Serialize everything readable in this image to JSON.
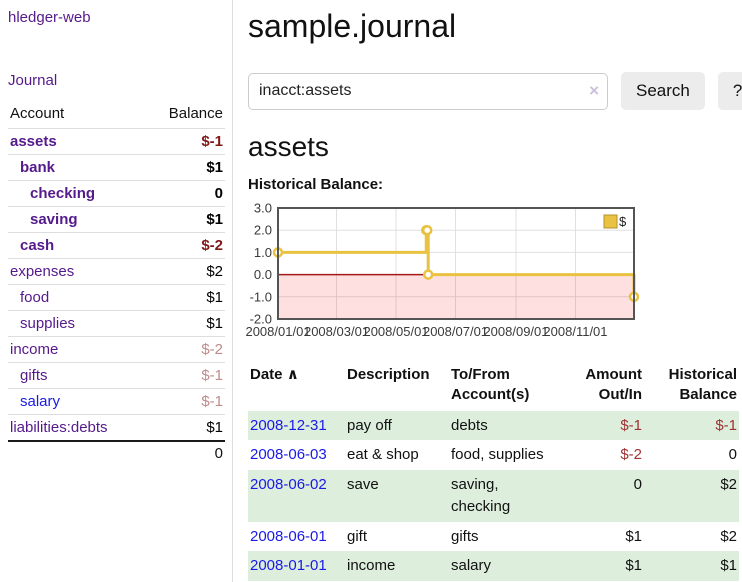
{
  "app": {
    "title": "hledger-web",
    "nav_journal": "Journal"
  },
  "colors": {
    "link_visited": "#551a8b",
    "link_unvisited": "#1a1ae6",
    "negative_strong": "#7f1a1a",
    "negative_pale": "#bf8b8b",
    "negative": "#9e3232",
    "row_shade": "#ddeedd",
    "series_gold": "#e8c240",
    "zero_line": "#a31a1a"
  },
  "sidebar": {
    "header": {
      "account": "Account",
      "balance": "Balance"
    },
    "accounts": [
      {
        "name": "assets",
        "depth": 1,
        "bold": true,
        "link": "visited",
        "balance": "$-1",
        "balance_class": "neg-strong"
      },
      {
        "name": "bank",
        "depth": 2,
        "bold": true,
        "link": "visited",
        "balance": "$1",
        "balance_class": "pos"
      },
      {
        "name": "checking",
        "depth": 3,
        "bold": true,
        "link": "visited",
        "balance": "0",
        "balance_class": "pos"
      },
      {
        "name": "saving",
        "depth": 3,
        "bold": true,
        "link": "visited",
        "balance": "$1",
        "balance_class": "pos"
      },
      {
        "name": "cash",
        "depth": 2,
        "bold": true,
        "link": "visited",
        "balance": "$-2",
        "balance_class": "neg-strong"
      },
      {
        "name": "expenses",
        "depth": 1,
        "bold": false,
        "link": "visited",
        "balance": "$2",
        "balance_class": "pos"
      },
      {
        "name": "food",
        "depth": 2,
        "bold": false,
        "link": "visited",
        "balance": "$1",
        "balance_class": "pos"
      },
      {
        "name": "supplies",
        "depth": 2,
        "bold": false,
        "link": "visited",
        "balance": "$1",
        "balance_class": "pos"
      },
      {
        "name": "income",
        "depth": 1,
        "bold": false,
        "link": "visited",
        "balance": "$-2",
        "balance_class": "neg-pale"
      },
      {
        "name": "gifts",
        "depth": 2,
        "bold": false,
        "link": "visited",
        "balance": "$-1",
        "balance_class": "neg-pale"
      },
      {
        "name": "salary",
        "depth": 2,
        "bold": false,
        "link": "unvisited",
        "balance": "$-1",
        "balance_class": "neg-pale"
      },
      {
        "name": "liabilities:debts",
        "depth": 1,
        "bold": false,
        "link": "visited",
        "balance": "$1",
        "balance_class": "pos"
      }
    ],
    "total": "0"
  },
  "header": {
    "title": "sample.journal"
  },
  "search": {
    "value": "inacct:assets",
    "clear_icon": "×",
    "button": "Search",
    "help_button": "?"
  },
  "main": {
    "account_title": "assets",
    "chart_label": "Historical Balance:"
  },
  "chart_data": {
    "type": "line",
    "step": true,
    "title": "Historical Balance",
    "legend": [
      {
        "label": "$",
        "color": "#e8c240"
      }
    ],
    "legend_position": "top-right",
    "grid": true,
    "x_range_days": [
      0,
      365
    ],
    "y_range": [
      -2,
      3
    ],
    "y_ticks": [
      {
        "value": 3,
        "label": "3.0"
      },
      {
        "value": 2,
        "label": "2.0"
      },
      {
        "value": 1,
        "label": "1.0"
      },
      {
        "value": 0,
        "label": "0.0"
      },
      {
        "value": -1,
        "label": "-1.0"
      },
      {
        "value": -2,
        "label": "-2.0"
      }
    ],
    "x_ticks": [
      {
        "day": 0,
        "label": "2008/01/01"
      },
      {
        "day": 60,
        "label": "2008/03/01"
      },
      {
        "day": 121,
        "label": "2008/05/01"
      },
      {
        "day": 182,
        "label": "2008/07/01"
      },
      {
        "day": 244,
        "label": "2008/09/01"
      },
      {
        "day": 305,
        "label": "2008/11/01"
      }
    ],
    "series": [
      {
        "name": "$",
        "color": "#e8c240",
        "points": [
          {
            "date": "2008-01-01",
            "day": 0,
            "value": 1
          },
          {
            "date": "2008-06-01",
            "day": 152,
            "value": 2
          },
          {
            "date": "2008-06-02",
            "day": 153,
            "value": 2
          },
          {
            "date": "2008-06-03",
            "day": 154,
            "value": 0
          },
          {
            "date": "2008-12-31",
            "day": 365,
            "value": -1
          }
        ]
      }
    ],
    "negative_zone_fill": "rgba(255,0,0,0.12)"
  },
  "register": {
    "sort_icon": "∧",
    "columns": [
      {
        "label": "Date"
      },
      {
        "label": "Description"
      },
      {
        "label": "To/From Account(s)"
      },
      {
        "label": "Amount Out/In"
      },
      {
        "label": "Historical Balance"
      }
    ],
    "rows": [
      {
        "date": "2008-12-31",
        "description": "pay off",
        "accounts": "debts",
        "amount": "$-1",
        "amount_neg": true,
        "balance": "$-1",
        "balance_neg": true,
        "shaded": true
      },
      {
        "date": "2008-06-03",
        "description": "eat & shop",
        "accounts": "food, supplies",
        "amount": "$-2",
        "amount_neg": true,
        "balance": "0",
        "balance_neg": false,
        "shaded": false
      },
      {
        "date": "2008-06-02",
        "description": "save",
        "accounts": "saving, checking",
        "amount": "0",
        "amount_neg": false,
        "balance": "$2",
        "balance_neg": false,
        "shaded": true
      },
      {
        "date": "2008-06-01",
        "description": "gift",
        "accounts": "gifts",
        "amount": "$1",
        "amount_neg": false,
        "balance": "$2",
        "balance_neg": false,
        "shaded": false
      },
      {
        "date": "2008-01-01",
        "description": "income",
        "accounts": "salary",
        "amount": "$1",
        "amount_neg": false,
        "balance": "$1",
        "balance_neg": false,
        "shaded": true
      }
    ]
  }
}
